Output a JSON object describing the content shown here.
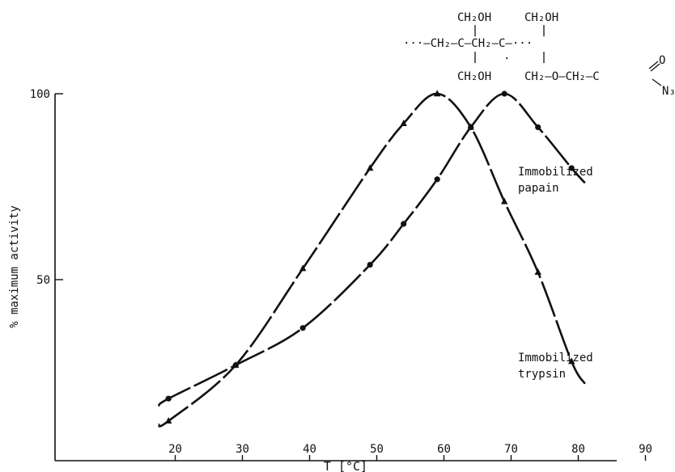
{
  "chart_data": {
    "type": "line",
    "title": "",
    "xlabel": "T [°C]",
    "ylabel": "% maximum activity",
    "xlim": [
      16,
      96
    ],
    "ylim": [
      0,
      100
    ],
    "x_ticks": [
      20,
      30,
      40,
      50,
      60,
      70,
      80,
      90
    ],
    "y_ticks": [
      50,
      100
    ],
    "grid": false,
    "legend": "inline labels at right ends of curves",
    "series": [
      {
        "name": "Immobilized papain",
        "marker": "circle",
        "points": [
          [
            19,
            18
          ],
          [
            29,
            27
          ],
          [
            39,
            37
          ],
          [
            49,
            54
          ],
          [
            54,
            65
          ],
          [
            59,
            77
          ],
          [
            64,
            91
          ],
          [
            69,
            100
          ],
          [
            74,
            91
          ],
          [
            79,
            80
          ]
        ],
        "curve_start": [
          17.5,
          16
        ],
        "curve_end": [
          81,
          76
        ]
      },
      {
        "name": "Immobilized trypsin",
        "marker": "triangle",
        "points": [
          [
            19,
            12
          ],
          [
            29,
            27
          ],
          [
            39,
            53
          ],
          [
            49,
            80
          ],
          [
            54,
            92
          ],
          [
            59,
            100
          ],
          [
            64,
            91
          ],
          [
            69,
            71
          ],
          [
            74,
            52
          ],
          [
            79,
            28
          ]
        ],
        "curve_start": [
          17.5,
          11
        ],
        "curve_end": [
          81,
          22
        ]
      }
    ]
  },
  "structure": {
    "top_left": "CH₂OH",
    "top_right": "CH₂OH",
    "chain": "···—CH₂—C—CH₂—C—···",
    "bottom_left": "CH₂OH",
    "bottom_right": "CH₂—O—CH₂—C",
    "carbonyl_o": "O",
    "azide": "N₃"
  }
}
